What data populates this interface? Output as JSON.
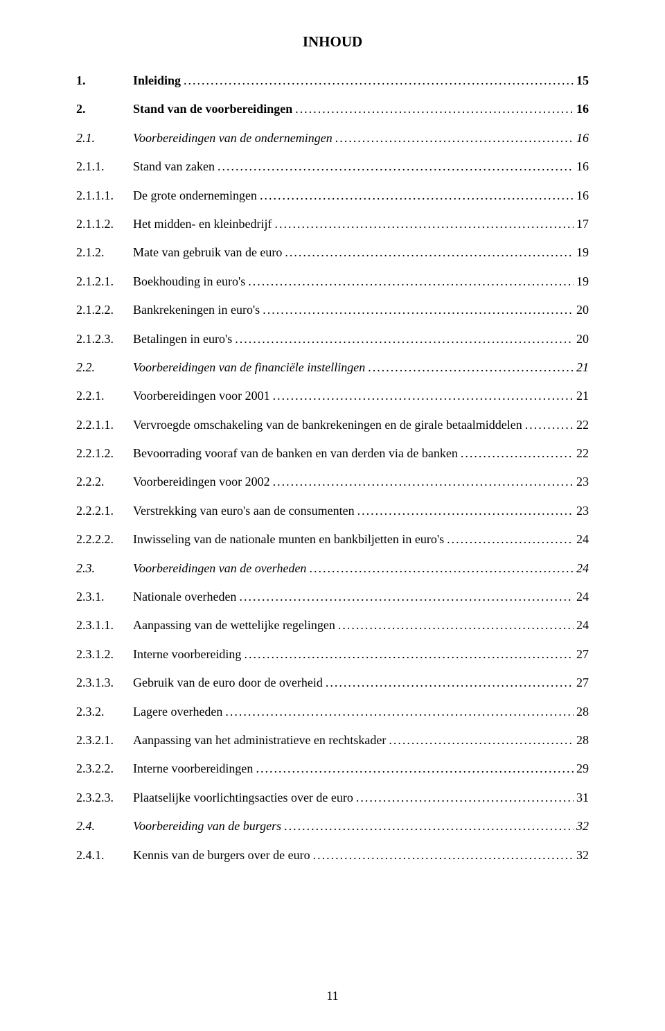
{
  "title": "INHOUD",
  "page_number": "11",
  "leader_char": ".",
  "entries": [
    {
      "num": "1.",
      "num_width": 82,
      "text": "Inleiding",
      "page": "15",
      "style": "bold"
    },
    {
      "num": "2.",
      "num_width": 82,
      "text": "Stand van de voorbereidingen",
      "page": "16",
      "style": "bold"
    },
    {
      "num": "2.1.",
      "num_width": 82,
      "text": "Voorbereidingen van de ondernemingen",
      "page": "16",
      "style": "italic",
      "page_style": "italic"
    },
    {
      "num": "2.1.1.",
      "num_width": 82,
      "text": "Stand van zaken",
      "page": "16",
      "style": "plain"
    },
    {
      "num": "2.1.1.1.",
      "num_width": 82,
      "text": "De grote ondernemingen",
      "page": "16",
      "style": "plain"
    },
    {
      "num": "2.1.1.2.",
      "num_width": 82,
      "text": "Het midden- en kleinbedrijf",
      "page": "17",
      "style": "plain"
    },
    {
      "num": "2.1.2.",
      "num_width": 82,
      "text": "Mate van gebruik van de euro",
      "page": "19",
      "style": "plain"
    },
    {
      "num": "2.1.2.1.",
      "num_width": 82,
      "text": "Boekhouding in euro's",
      "page": "19",
      "style": "plain"
    },
    {
      "num": "2.1.2.2.",
      "num_width": 82,
      "text": "Bankrekeningen in euro's",
      "page": "20",
      "style": "plain"
    },
    {
      "num": "2.1.2.3.",
      "num_width": 82,
      "text": "Betalingen in euro's",
      "page": "20",
      "style": "plain"
    },
    {
      "num": "2.2.",
      "num_width": 82,
      "text": "Voorbereidingen van de financiële instellingen",
      "page": "21",
      "style": "italic",
      "page_style": "italic"
    },
    {
      "num": "2.2.1.",
      "num_width": 82,
      "text": "Voorbereidingen voor 2001",
      "page": "21",
      "style": "plain"
    },
    {
      "num": "2.2.1.1.",
      "num_width": 82,
      "text": "Vervroegde omschakeling van de bankrekeningen en de girale betaalmiddelen",
      "page": "22",
      "style": "plain"
    },
    {
      "num": "2.2.1.2.",
      "num_width": 82,
      "text": "Bevoorrading vooraf van de banken en van derden via de banken",
      "page": "22",
      "style": "plain"
    },
    {
      "num": "2.2.2.",
      "num_width": 82,
      "text": "Voorbereidingen voor 2002",
      "page": "23",
      "style": "plain"
    },
    {
      "num": "2.2.2.1.",
      "num_width": 82,
      "text": "Verstrekking van euro's aan de consumenten",
      "page": "23",
      "style": "plain"
    },
    {
      "num": "2.2.2.2.",
      "num_width": 82,
      "text": "Inwisseling van de nationale munten en bankbiljetten in euro's",
      "page": "24",
      "style": "plain"
    },
    {
      "num": "2.3.",
      "num_width": 82,
      "text": "Voorbereidingen van de overheden",
      "page": "24",
      "style": "italic",
      "page_style": "italic"
    },
    {
      "num": "2.3.1.",
      "num_width": 82,
      "text": "Nationale overheden",
      "page": "24",
      "style": "plain"
    },
    {
      "num": "2.3.1.1.",
      "num_width": 82,
      "text": "Aanpassing van de wettelijke regelingen",
      "page": "24",
      "style": "plain"
    },
    {
      "num": "2.3.1.2.",
      "num_width": 82,
      "text": "Interne voorbereiding",
      "page": "27",
      "style": "plain"
    },
    {
      "num": "2.3.1.3.",
      "num_width": 82,
      "text": "Gebruik van de euro door de overheid",
      "page": "27",
      "style": "plain"
    },
    {
      "num": "2.3.2.",
      "num_width": 82,
      "text": "Lagere overheden",
      "page": "28",
      "style": "plain"
    },
    {
      "num": "2.3.2.1.",
      "num_width": 82,
      "text": "Aanpassing van het administratieve en rechtskader",
      "page": "28",
      "style": "plain"
    },
    {
      "num": "2.3.2.2.",
      "num_width": 82,
      "text": "Interne voorbereidingen",
      "page": "29",
      "style": "plain"
    },
    {
      "num": "2.3.2.3.",
      "num_width": 82,
      "text": "Plaatselijke voorlichtingsacties over de euro",
      "page": "31",
      "style": "plain"
    },
    {
      "num": "2.4.",
      "num_width": 82,
      "text": "Voorbereiding van de burgers",
      "page": "32",
      "style": "italic",
      "page_style": "italic"
    },
    {
      "num": "2.4.1.",
      "num_width": 82,
      "text": "Kennis van de burgers over de euro",
      "page": "32",
      "style": "plain"
    }
  ]
}
